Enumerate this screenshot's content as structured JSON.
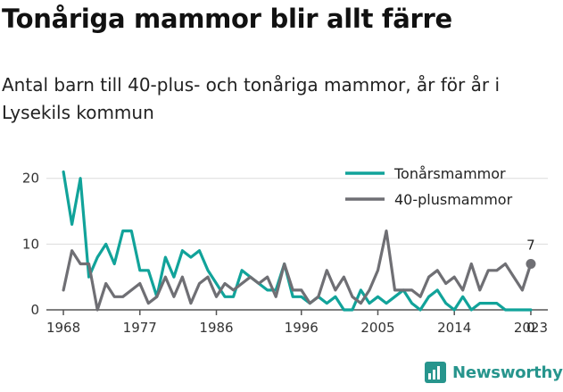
{
  "colors": {
    "teen": "#11a39a",
    "forty": "#6f6f74",
    "brand": "#27958d",
    "axis": "#555555",
    "grid": "#dcdcdc"
  },
  "brand": {
    "name": "Newsworthy",
    "icon": "bar-chart-logo-icon"
  },
  "chart_data": {
    "type": "line",
    "title": "Tonåriga mammor blir allt färre",
    "subtitle": "Antal barn till 40-plus- och tonåriga mammor, år för år i Lysekils kommun",
    "xlabel": "",
    "ylabel": "",
    "x": [
      1968,
      1969,
      1970,
      1971,
      1972,
      1973,
      1974,
      1975,
      1976,
      1977,
      1978,
      1979,
      1980,
      1981,
      1982,
      1983,
      1984,
      1985,
      1986,
      1987,
      1988,
      1989,
      1990,
      1991,
      1992,
      1993,
      1994,
      1995,
      1996,
      1997,
      1998,
      1999,
      2000,
      2001,
      2002,
      2003,
      2004,
      2005,
      2006,
      2007,
      2008,
      2009,
      2010,
      2011,
      2012,
      2013,
      2014,
      2015,
      2016,
      2017,
      2018,
      2019,
      2020,
      2021,
      2022,
      2023
    ],
    "xticks": [
      "1968",
      "1977",
      "1986",
      "1996",
      "2005",
      "2014",
      "2023"
    ],
    "xtick_values": [
      1968,
      1977,
      1986,
      1996,
      2005,
      2014,
      2023
    ],
    "yticks": [
      "0",
      "10",
      "20"
    ],
    "ytick_values": [
      0,
      10,
      20
    ],
    "xlim": [
      1966,
      2025
    ],
    "ylim": [
      0,
      22
    ],
    "grid": "horizontal",
    "legend": "top-right",
    "series": [
      {
        "name": "Tonårsmammor",
        "color_key": "teen",
        "values": [
          21,
          13,
          20,
          5,
          8,
          10,
          7,
          12,
          12,
          6,
          6,
          2,
          8,
          5,
          9,
          8,
          9,
          6,
          4,
          2,
          2,
          6,
          5,
          4,
          3,
          3,
          7,
          2,
          2,
          1,
          2,
          1,
          2,
          0,
          0,
          3,
          1,
          2,
          1,
          2,
          3,
          1,
          0,
          2,
          3,
          1,
          0,
          2,
          0,
          1,
          1,
          1,
          0,
          0,
          0,
          0
        ],
        "end_label": "0"
      },
      {
        "name": "40-plusmammor",
        "color_key": "forty",
        "values": [
          3,
          9,
          7,
          7,
          0,
          4,
          2,
          2,
          3,
          4,
          1,
          2,
          5,
          2,
          5,
          1,
          4,
          5,
          2,
          4,
          3,
          4,
          5,
          4,
          5,
          2,
          7,
          3,
          3,
          1,
          2,
          6,
          3,
          5,
          2,
          1,
          3,
          6,
          12,
          3,
          3,
          3,
          2,
          5,
          6,
          4,
          5,
          3,
          7,
          3,
          6,
          6,
          7,
          5,
          3,
          7
        ],
        "end_label": "7"
      }
    ]
  }
}
